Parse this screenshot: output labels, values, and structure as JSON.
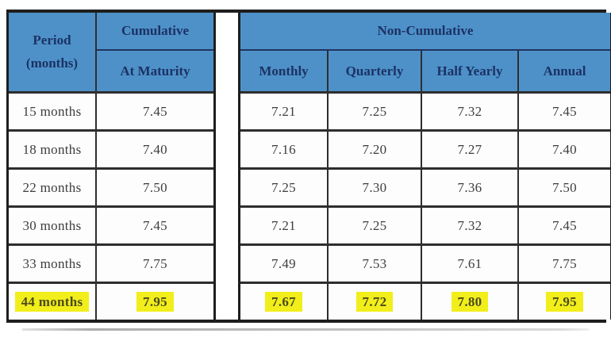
{
  "table": {
    "period_header": {
      "line1": "Period",
      "line2": "(months)"
    },
    "cumulative": {
      "group_header": "Cumulative",
      "sub_header": "At Maturity"
    },
    "non_cumulative": {
      "group_header": "Non-Cumulative",
      "sub_headers": [
        "Monthly",
        "Quarterly",
        "Half Yearly",
        "Annual"
      ]
    },
    "rows": [
      {
        "period": "15 months",
        "at_maturity": "7.45",
        "monthly": "7.21",
        "quarterly": "7.25",
        "half_yearly": "7.32",
        "annual": "7.45",
        "highlighted": false
      },
      {
        "period": "18 months",
        "at_maturity": "7.40",
        "monthly": "7.16",
        "quarterly": "7.20",
        "half_yearly": "7.27",
        "annual": "7.40",
        "highlighted": false
      },
      {
        "period": "22 months",
        "at_maturity": "7.50",
        "monthly": "7.25",
        "quarterly": "7.30",
        "half_yearly": "7.36",
        "annual": "7.50",
        "highlighted": false
      },
      {
        "period": "30 months",
        "at_maturity": "7.45",
        "monthly": "7.21",
        "quarterly": "7.25",
        "half_yearly": "7.32",
        "annual": "7.45",
        "highlighted": false
      },
      {
        "period": "33 months",
        "at_maturity": "7.75",
        "monthly": "7.49",
        "quarterly": "7.53",
        "half_yearly": "7.61",
        "annual": "7.75",
        "highlighted": false
      },
      {
        "period": "44 months",
        "at_maturity": "7.95",
        "monthly": "7.67",
        "quarterly": "7.72",
        "half_yearly": "7.80",
        "annual": "7.95",
        "highlighted": true
      }
    ]
  },
  "chart_data": {
    "type": "table",
    "column_groups": [
      {
        "label": "Period (months)",
        "columns": [
          "Period (months)"
        ]
      },
      {
        "label": "Cumulative",
        "columns": [
          "At Maturity"
        ]
      },
      {
        "label": "Non-Cumulative",
        "columns": [
          "Monthly",
          "Quarterly",
          "Half Yearly",
          "Annual"
        ]
      }
    ],
    "rows": [
      [
        "15 months",
        7.45,
        7.21,
        7.25,
        7.32,
        7.45
      ],
      [
        "18 months",
        7.4,
        7.16,
        7.2,
        7.27,
        7.4
      ],
      [
        "22 months",
        7.5,
        7.25,
        7.3,
        7.36,
        7.5
      ],
      [
        "30 months",
        7.45,
        7.21,
        7.25,
        7.32,
        7.45
      ],
      [
        "33 months",
        7.75,
        7.49,
        7.53,
        7.61,
        7.75
      ],
      [
        "44 months",
        7.95,
        7.67,
        7.72,
        7.8,
        7.95
      ]
    ],
    "highlighted_row": "44 months"
  },
  "colors": {
    "header_bg": "#4e91c9",
    "header_text": "#1b3264",
    "highlight_bg": "#f2ee1b",
    "grid_dark": "#2e2e2e"
  }
}
